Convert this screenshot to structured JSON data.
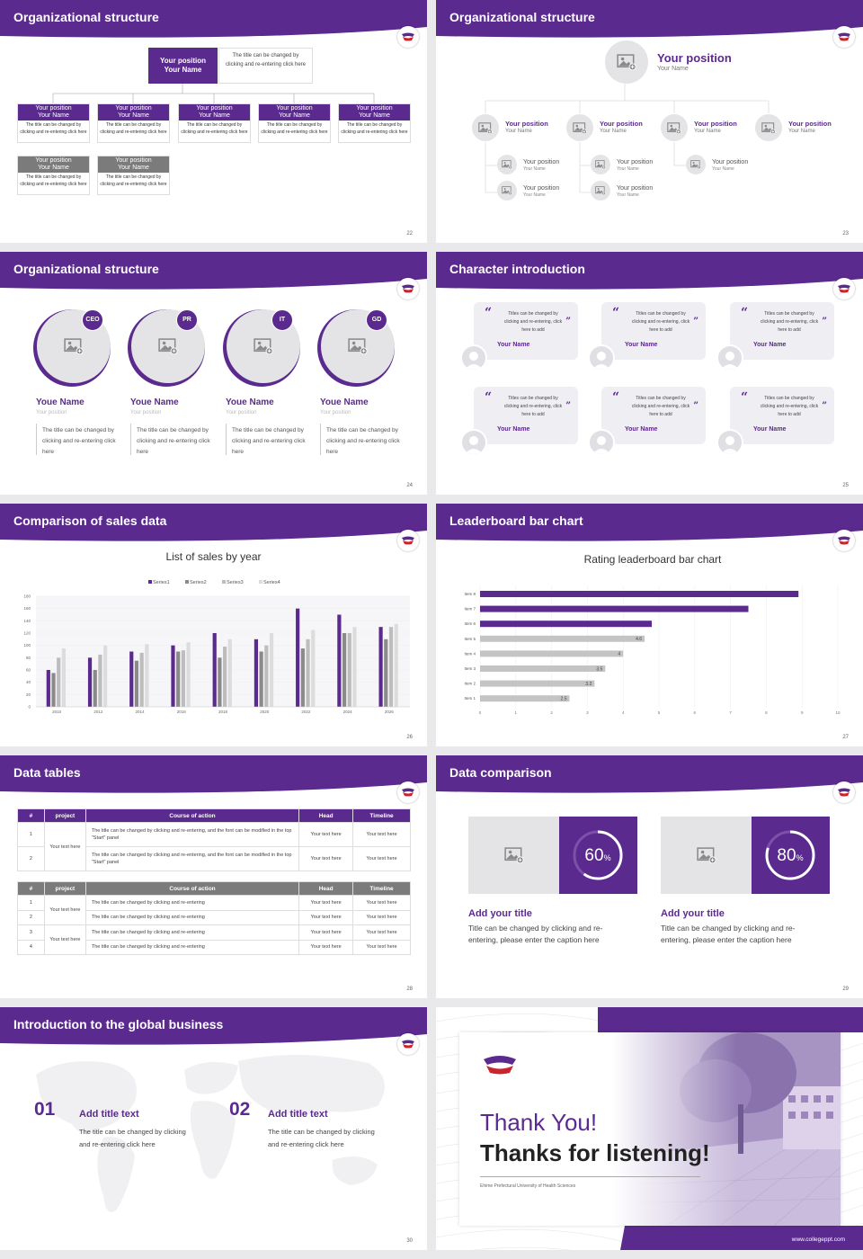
{
  "slides": [
    {
      "title": "Organizational structure",
      "page": "22"
    },
    {
      "title": "Organizational structure",
      "page": "23"
    },
    {
      "title": "Organizational structure",
      "page": "24"
    },
    {
      "title": "Character introduction",
      "page": "25"
    },
    {
      "title": "Comparison of sales data",
      "page": "26"
    },
    {
      "title": "Leaderboard bar chart",
      "page": "27"
    },
    {
      "title": "Data tables",
      "page": "28"
    },
    {
      "title": "Data comparison",
      "page": "29"
    },
    {
      "title": "Introduction to the global business",
      "page": "30"
    }
  ],
  "org1": {
    "top_position": "Your position",
    "top_name": "Your Name",
    "top_note": "The title can be changed by clicking and re-entering click here",
    "position": "Your position",
    "name": "Your Name",
    "box_note": "The title can be changed by clicking and re-entering click here"
  },
  "org2": {
    "top_position": "Your position",
    "top_name": "Your Name",
    "position": "Your position",
    "name": "Your Name"
  },
  "org3": {
    "badges": [
      "CEO",
      "PR",
      "IT",
      "GD"
    ],
    "name": "Youe Name",
    "position": "Your position",
    "note": "The title can be changed by clicking and re-entering click here"
  },
  "characters": {
    "text": "Titles can be changed by clicking and re-entering, click here to add",
    "name": "Your Name"
  },
  "sales_chart_title": "List of sales by year",
  "leader_chart_title": "Rating leaderboard bar chart",
  "chart_data": [
    {
      "type": "bar",
      "title": "List of sales by year",
      "categories": [
        "2010",
        "2012",
        "2014",
        "2016",
        "2018",
        "2020",
        "2022",
        "2024",
        "2026"
      ],
      "series": [
        {
          "name": "Series1",
          "values": [
            60,
            80,
            90,
            100,
            120,
            110,
            160,
            150,
            130
          ]
        },
        {
          "name": "Series2",
          "values": [
            55,
            60,
            75,
            90,
            80,
            90,
            95,
            120,
            110
          ]
        },
        {
          "name": "Series3",
          "values": [
            80,
            85,
            88,
            92,
            98,
            100,
            110,
            120,
            130
          ]
        },
        {
          "name": "Series4",
          "values": [
            95,
            100,
            102,
            105,
            110,
            120,
            125,
            130,
            135
          ]
        }
      ],
      "ylim": [
        0,
        180
      ],
      "yticks": [
        "0",
        "20",
        "40",
        "60",
        "80",
        "100",
        "120",
        "140",
        "160",
        "180"
      ],
      "legend": "top",
      "colors": [
        "#5b2a8e",
        "#8a8a8a",
        "#bdbdbd",
        "#dcdcdc"
      ]
    },
    {
      "type": "bar",
      "orientation": "horizontal",
      "title": "Rating leaderboard bar chart",
      "categories": [
        "Item 8",
        "Item 7",
        "Item 6",
        "Item 5",
        "Item 4",
        "Item 3",
        "Item 2",
        "Item 1"
      ],
      "values": [
        8.9,
        7.5,
        4.8,
        4.6,
        4,
        3.5,
        3.2,
        2.5
      ],
      "labels": [
        "",
        "",
        "",
        "4.6",
        "4",
        "3.5",
        "3.2",
        "2.5"
      ],
      "highlight": [
        true,
        true,
        true,
        false,
        false,
        false,
        false,
        false
      ],
      "xlim": [
        0,
        10
      ],
      "xticks": [
        "0",
        "1",
        "2",
        "3",
        "4",
        "5",
        "6",
        "7",
        "8",
        "9",
        "10"
      ],
      "colors": {
        "highlight": "#5b2a8e",
        "normal": "#c4c4c4"
      }
    }
  ],
  "tables": {
    "headers": [
      "#",
      "project",
      "Course of action",
      "Head",
      "Timeline"
    ],
    "t1_rows": [
      {
        "n": "1",
        "action": "The title can be changed by clicking and re-entering, and the font can be modified in the top \"Start\" panel",
        "head": "Your text here",
        "time": "Your text here"
      },
      {
        "n": "2",
        "action": "The title can be changed by clicking and re-entering, and the font can be modified in the top \"Start\" panel",
        "head": "Your text here",
        "time": "Your text here"
      }
    ],
    "t1_project": "Your text here",
    "t2_rows": [
      {
        "n": "1",
        "action": "The title can be changed by clicking and re-entering",
        "head": "Your text here",
        "time": "Your text here"
      },
      {
        "n": "2",
        "action": "The title can be changed by clicking and re-entering",
        "head": "Your text here",
        "time": "Your text here"
      },
      {
        "n": "3",
        "action": "The title can be changed by clicking and re-entering",
        "head": "Your text here",
        "time": "Your text here"
      },
      {
        "n": "4",
        "action": "The title can be changed by clicking and re-entering",
        "head": "Your text here",
        "time": "Your text here"
      }
    ],
    "t2_project_a": "Your text here",
    "t2_project_b": "Your text here"
  },
  "comparison": [
    {
      "percent": "60",
      "unit": "%",
      "fraction": 0.6,
      "title": "Add your title",
      "caption": "Title can be changed by clicking and re-entering, please enter the caption here"
    },
    {
      "percent": "80",
      "unit": "%",
      "fraction": 0.8,
      "title": "Add your title",
      "caption": "Title can be changed by clicking and re-entering, please enter the caption here"
    }
  ],
  "global": [
    {
      "num": "01",
      "title": "Add title text",
      "text": "The title can be changed by clicking and re-entering click here"
    },
    {
      "num": "02",
      "title": "Add title text",
      "text": "The title can be changed by clicking and re-entering click here"
    }
  ],
  "closing": {
    "thank": "Thank You!",
    "thanks": "Thanks for listening!",
    "school": "Ehime Prefectural University of Health Sciences",
    "site": "www.collegeppt.com"
  },
  "colors": {
    "brand": "#5b2a8e",
    "brand_dark": "#4a1f7a",
    "grey": "#7b7b7b"
  }
}
